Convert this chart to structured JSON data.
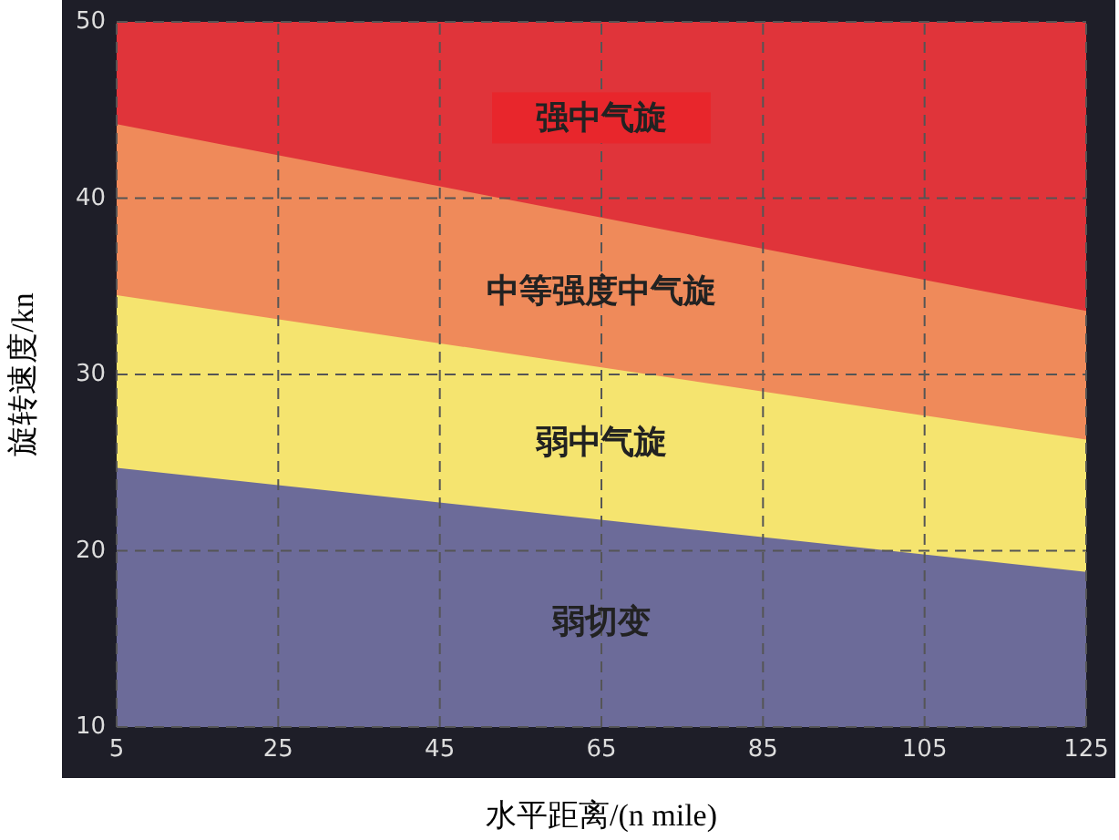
{
  "chart_data": {
    "type": "area",
    "xlabel": "水平距离/(n mile)",
    "ylabel": "旋转速度/kn",
    "x": [
      5,
      125
    ],
    "series": [
      {
        "name": "强中气旋",
        "color": "#e0343a",
        "values": [
          50,
          50
        ]
      },
      {
        "name": "中等强度中气旋",
        "color": "#ef8a5a",
        "values": [
          44.2,
          33.6
        ]
      },
      {
        "name": "弱中气旋",
        "color": "#f5e46f",
        "values": [
          34.5,
          26.3
        ]
      },
      {
        "name": "弱切变",
        "color": "#6c6b99",
        "values": [
          24.7,
          18.8
        ]
      }
    ],
    "xlim": [
      5,
      125
    ],
    "ylim": [
      10,
      50
    ],
    "xticks": [
      5,
      25,
      45,
      65,
      85,
      105,
      125
    ],
    "yticks": [
      10,
      20,
      30,
      40,
      50
    ],
    "grid": true,
    "line_style": "dashed"
  }
}
